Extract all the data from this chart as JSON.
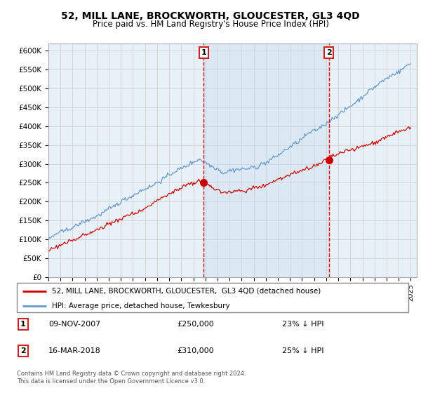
{
  "title": "52, MILL LANE, BROCKWORTH, GLOUCESTER, GL3 4QD",
  "subtitle": "Price paid vs. HM Land Registry's House Price Index (HPI)",
  "legend_line1": "52, MILL LANE, BROCKWORTH, GLOUCESTER,  GL3 4QD (detached house)",
  "legend_line2": "HPI: Average price, detached house, Tewkesbury",
  "sale1_date": "09-NOV-2007",
  "sale1_price": "£250,000",
  "sale1_hpi": "23% ↓ HPI",
  "sale2_date": "16-MAR-2018",
  "sale2_price": "£310,000",
  "sale2_hpi": "25% ↓ HPI",
  "footer": "Contains HM Land Registry data © Crown copyright and database right 2024.\nThis data is licensed under the Open Government Licence v3.0.",
  "red_color": "#cc0000",
  "blue_color": "#6699cc",
  "fill_color": "#ddeeff",
  "dashed_color": "#dd0000",
  "bg_color": "#f0f0f0",
  "plot_bg": "#e8f0f8",
  "ylim": [
    0,
    620000
  ],
  "yticks": [
    0,
    50000,
    100000,
    150000,
    200000,
    250000,
    300000,
    350000,
    400000,
    450000,
    500000,
    550000,
    600000
  ],
  "sale1_x": 2007.86,
  "sale1_y": 250000,
  "sale2_x": 2018.21,
  "sale2_y": 310000,
  "xmin": 1995,
  "xmax": 2025.5
}
